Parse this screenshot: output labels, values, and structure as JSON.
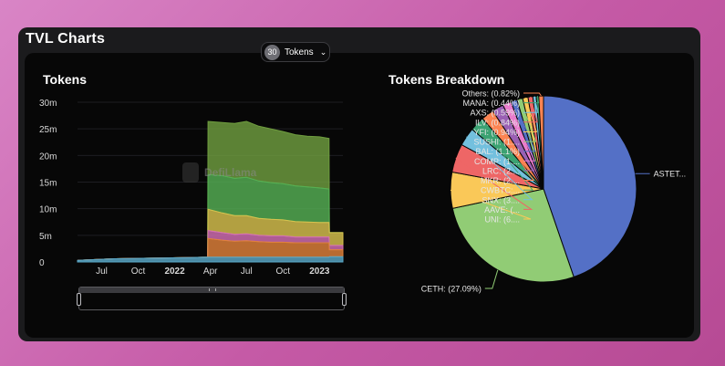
{
  "window": {
    "title": "TVL Charts"
  },
  "tokens_panel": {
    "title": "Tokens",
    "select_count": "30",
    "select_label": "Tokens",
    "select_icon": "chevron-down-icon",
    "watermark": "DefiLlama"
  },
  "breakdown_panel": {
    "title": "Tokens Breakdown"
  },
  "chart_data": [
    {
      "type": "area",
      "title": "Tokens",
      "y_tick_labels": [
        "0",
        "5m",
        "10m",
        "15m",
        "20m",
        "25m",
        "30m"
      ],
      "y_ticks": [
        0,
        5000000,
        10000000,
        15000000,
        20000000,
        25000000,
        30000000
      ],
      "ylim": [
        0,
        30000000
      ],
      "x_tick_labels": [
        "Jul",
        "Oct",
        "2022",
        "Apr",
        "Jul",
        "Oct",
        "2023"
      ],
      "x_tick_dates": [
        "2021-07-01",
        "2021-10-01",
        "2022-01-01",
        "2022-04-01",
        "2022-07-01",
        "2022-10-01",
        "2023-01-01"
      ],
      "xlim": [
        "2021-05-01",
        "2023-03-01"
      ],
      "grid": true,
      "legend": "none",
      "stacked": true,
      "colors": {
        "ASTETH": "#6f9e3f",
        "CETH": "#55b054",
        "other": "#5aa8c8",
        "orange": "#e0813a",
        "pink": "#d46fb4",
        "yellow": "#d8c24e"
      },
      "x": [
        "2021-05-01",
        "2021-08-01",
        "2021-11-01",
        "2022-02-01",
        "2022-03-25",
        "2022-03-26",
        "2022-05-01",
        "2022-06-01",
        "2022-07-01",
        "2022-08-01",
        "2022-09-01",
        "2022-10-01",
        "2022-11-01",
        "2022-12-01",
        "2023-01-01",
        "2023-01-25",
        "2023-01-26",
        "2023-03-01"
      ],
      "series": [
        {
          "values": [
            0,
            0,
            0,
            0,
            0,
            10000000,
            10000000,
            10300000,
            10500000,
            10300000,
            10100000,
            9800000,
            9600000,
            9500000,
            9600000,
            9500000,
            0,
            0
          ]
        },
        {
          "values": [
            0,
            0,
            0,
            0,
            0,
            6500000,
            7000000,
            7000000,
            7200000,
            7000000,
            6900000,
            6800000,
            6700000,
            6600000,
            6500000,
            6300000,
            0,
            0
          ]
        },
        {
          "values": [
            300000,
            600000,
            700000,
            800000,
            900000,
            900000,
            900000,
            900000,
            900000,
            900000,
            900000,
            900000,
            900000,
            900000,
            900000,
            900000,
            1000000,
            1000000
          ]
        },
        {
          "values": [
            0,
            0,
            0,
            0,
            0,
            3500000,
            3200000,
            3000000,
            3100000,
            2900000,
            2800000,
            2800000,
            2700000,
            2700000,
            2700000,
            2700000,
            1300000,
            1300000
          ]
        },
        {
          "values": [
            0,
            0,
            0,
            0,
            0,
            1500000,
            1400000,
            1300000,
            1300000,
            1200000,
            1200000,
            1200000,
            1100000,
            1100000,
            1100000,
            1100000,
            800000,
            800000
          ]
        },
        {
          "values": [
            0,
            0,
            0,
            0,
            0,
            4000000,
            3700000,
            3500000,
            3400000,
            3200000,
            3100000,
            3000000,
            2900000,
            2800000,
            2700000,
            2700000,
            2400000,
            2400000
          ]
        }
      ]
    },
    {
      "type": "pie",
      "title": "Tokens Breakdown",
      "slices": [
        {
          "label": "ASTET...",
          "value": 45.0,
          "color": "#5470c6"
        },
        {
          "label": "CETH: (27.09%)",
          "value": 27.09,
          "color": "#91cc75"
        },
        {
          "label": "UNI: (6....",
          "value": 6.3,
          "color": "#fac858"
        },
        {
          "label": "AAVE: (...",
          "value": 5.0,
          "color": "#ee6666"
        },
        {
          "label": "SNX: (3....",
          "value": 3.2,
          "color": "#73c0de"
        },
        {
          "label": "CWBTC:...",
          "value": 2.6,
          "color": "#3ba272"
        },
        {
          "label": "MKR: (2....",
          "value": 2.2,
          "color": "#fc8452"
        },
        {
          "label": "LRC: (2....",
          "value": 2.0,
          "color": "#9a60b4"
        },
        {
          "label": "COMP: (1....",
          "value": 1.5,
          "color": "#ea7ccc"
        },
        {
          "label": "BAL: (1.1%)",
          "value": 1.1,
          "color": "#5470c6"
        },
        {
          "label": "SUSHI: (1....",
          "value": 1.0,
          "color": "#91cc75"
        },
        {
          "label": "YFI: (0.94%)",
          "value": 0.94,
          "color": "#fac858"
        },
        {
          "label": "ILV: (0.84%)",
          "value": 0.84,
          "color": "#ee6666"
        },
        {
          "label": "AXS: (0.59%)",
          "value": 0.59,
          "color": "#73c0de"
        },
        {
          "label": "MANA: (0.44%)",
          "value": 0.44,
          "color": "#3ba272"
        },
        {
          "label": "Others: (0.82%)",
          "value": 0.82,
          "color": "#fc8452"
        }
      ]
    }
  ]
}
